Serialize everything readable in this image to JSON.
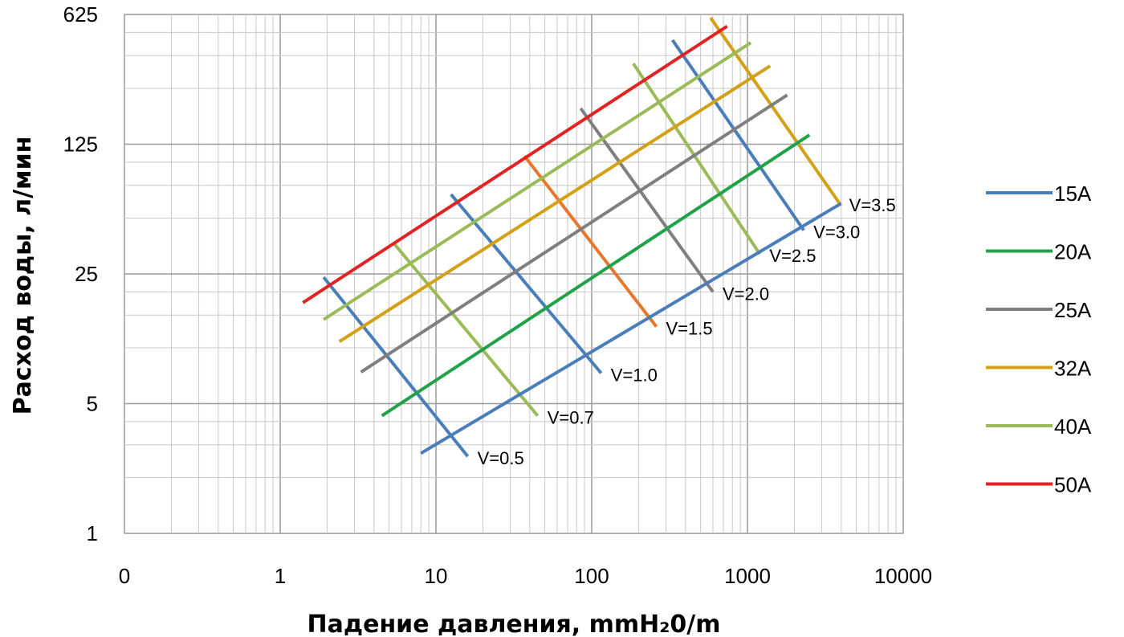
{
  "chart_data": {
    "type": "line",
    "title": "",
    "xlabel": "Падение давления, mmH₂0/m",
    "ylabel": "Расход воды, л/мин",
    "x_scale": "log",
    "y_scale": "log",
    "x_tick_labels": [
      "0",
      "1",
      "10",
      "100",
      "1000",
      "10000"
    ],
    "y_tick_labels": [
      "1",
      "5",
      "25",
      "125",
      "625"
    ],
    "xlim": [
      0.1,
      10000
    ],
    "ylim": [
      1,
      625
    ],
    "grid": true,
    "legend_position": "right",
    "series": [
      {
        "name": "15A",
        "color": "#4a7ebb",
        "points": [
          [
            8,
            2.7
          ],
          [
            4000,
            60
          ]
        ]
      },
      {
        "name": "20A",
        "color": "#21a14a",
        "points": [
          [
            4.5,
            4.3
          ],
          [
            2500,
            140
          ]
        ]
      },
      {
        "name": "25A",
        "color": "#7f7f7f",
        "points": [
          [
            3.3,
            7.4
          ],
          [
            1800,
            230
          ]
        ]
      },
      {
        "name": "32A",
        "color": "#d4a017",
        "points": [
          [
            2.4,
            10.8
          ],
          [
            1400,
            330
          ]
        ]
      },
      {
        "name": "40A",
        "color": "#9bbb59",
        "points": [
          [
            1.9,
            14.2
          ],
          [
            1050,
            440
          ]
        ]
      },
      {
        "name": "50A",
        "color": "#e02323",
        "points": [
          [
            1.4,
            17.5
          ],
          [
            740,
            540
          ]
        ]
      }
    ],
    "velocity_lines": [
      {
        "label": "V=0.5",
        "color": "#4a7ebb",
        "points": [
          [
            1.9,
            24
          ],
          [
            16,
            2.6
          ]
        ]
      },
      {
        "label": "V=0.7",
        "color": "#9bbb59",
        "points": [
          [
            5.3,
            37
          ],
          [
            45,
            4.3
          ]
        ]
      },
      {
        "label": "V=1.0",
        "color": "#4a7ebb",
        "points": [
          [
            12.5,
            67
          ],
          [
            115,
            7.3
          ]
        ]
      },
      {
        "label": "V=1.5",
        "color": "#e8772e",
        "points": [
          [
            37,
            108
          ],
          [
            260,
            13
          ]
        ]
      },
      {
        "label": "V=2.0",
        "color": "#7f7f7f",
        "points": [
          [
            85,
            195
          ],
          [
            600,
            20
          ]
        ]
      },
      {
        "label": "V=2.5",
        "color": "#9bbb59",
        "points": [
          [
            185,
            340
          ],
          [
            1200,
            32
          ]
        ]
      },
      {
        "label": "V=3.0",
        "color": "#4a7ebb",
        "points": [
          [
            330,
            455
          ],
          [
            2300,
            43
          ]
        ]
      },
      {
        "label": "V=3.5",
        "color": "#d4a017",
        "points": [
          [
            580,
            600
          ],
          [
            3900,
            60
          ]
        ]
      }
    ]
  }
}
